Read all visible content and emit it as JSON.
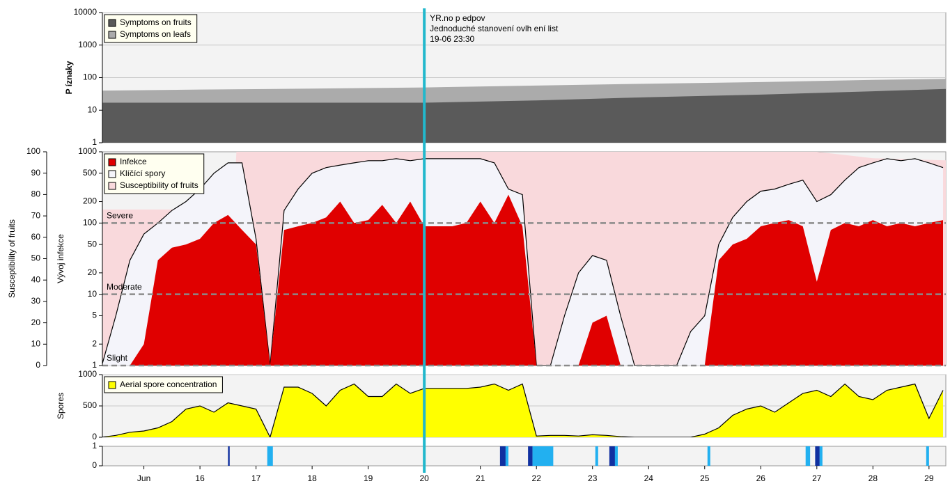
{
  "chart_data": [
    {
      "type": "area",
      "ylabel": "P íznaky",
      "log": true,
      "grid": true,
      "legend": "upper left",
      "xlim": [
        14.26,
        29.3
      ],
      "ylim": [
        1,
        10000
      ],
      "yticks": [
        1,
        10,
        100,
        1000,
        10000
      ],
      "marker_x": 20,
      "annotations": [
        "YR.no p edpov",
        "Jednoduché stanovení ovlh ení list",
        "19-06 23:30"
      ],
      "x": [
        14.26,
        16,
        18,
        20,
        22,
        24,
        26,
        28,
        29.3
      ],
      "series": [
        {
          "name": "Symptoms on fruits",
          "color": "#5a5a5a",
          "values": [
            17,
            17,
            17,
            17,
            20,
            25,
            30,
            38,
            45
          ]
        },
        {
          "name": "Symptoms on leafs",
          "color": "#ababab",
          "values": [
            40,
            43,
            46,
            50,
            57,
            65,
            73,
            85,
            92
          ]
        }
      ]
    },
    {
      "type": "area",
      "ylabel": "Vývoj infekce",
      "y2label": "Susceptibility of fruits",
      "log": true,
      "grid": false,
      "legend": "upper left",
      "xlim": [
        14.26,
        29.3
      ],
      "ylim": [
        1,
        1000
      ],
      "yticks": [
        1,
        2,
        5,
        10,
        20,
        50,
        100,
        200,
        500,
        1000
      ],
      "y2lim": [
        0,
        100
      ],
      "y2ticks": [
        0,
        10,
        20,
        30,
        40,
        50,
        60,
        70,
        80,
        90,
        100
      ],
      "thresholds": [
        {
          "label": "Severe",
          "value": 100
        },
        {
          "label": "Moderate",
          "value": 10
        },
        {
          "label": "Slight",
          "value": 1
        }
      ],
      "x": [
        14.25,
        14.5,
        14.75,
        15,
        15.25,
        15.5,
        15.75,
        16,
        16.25,
        16.5,
        16.75,
        17,
        17.25,
        17.5,
        17.75,
        18,
        18.25,
        18.5,
        18.75,
        19,
        19.25,
        19.5,
        19.75,
        20,
        20.25,
        20.5,
        20.75,
        21,
        21.25,
        21.5,
        21.75,
        22,
        22.25,
        22.5,
        22.75,
        23,
        23.25,
        23.5,
        23.75,
        24,
        24.25,
        24.5,
        24.75,
        25,
        25.25,
        25.5,
        25.75,
        26,
        26.25,
        26.5,
        26.75,
        27,
        27.25,
        27.5,
        27.75,
        28,
        28.25,
        28.5,
        28.75,
        29,
        29.25
      ],
      "series": [
        {
          "name": "Infekce",
          "color": "#e00000",
          "values": [
            1,
            1,
            1,
            2,
            30,
            45,
            50,
            60,
            100,
            130,
            80,
            50,
            1,
            80,
            90,
            100,
            120,
            200,
            100,
            110,
            180,
            100,
            200,
            90,
            90,
            90,
            100,
            200,
            100,
            250,
            90,
            1,
            1,
            1,
            1,
            4,
            5,
            1,
            1,
            1,
            1,
            1,
            1,
            1,
            30,
            50,
            60,
            90,
            100,
            110,
            90,
            15,
            80,
            100,
            90,
            110,
            90,
            100,
            90,
            100,
            110
          ]
        },
        {
          "name": "Klíčící spory",
          "color": "#f4f4fa",
          "line_color": "#000000",
          "values": [
            1,
            5,
            30,
            70,
            100,
            150,
            200,
            300,
            500,
            700,
            700,
            60,
            1,
            150,
            300,
            500,
            600,
            650,
            700,
            750,
            750,
            800,
            750,
            800,
            800,
            800,
            800,
            800,
            700,
            300,
            250,
            1,
            1,
            5,
            20,
            35,
            30,
            5,
            1,
            1,
            1,
            1,
            3,
            5,
            50,
            120,
            200,
            280,
            300,
            350,
            400,
            200,
            250,
            400,
            600,
            700,
            800,
            750,
            800,
            700,
            600
          ]
        },
        {
          "name": "Susceptibility of fruits",
          "color": "#f9d9dc",
          "axis": "y2",
          "x": [
            14.26,
            16.6,
            16.65,
            27,
            28,
            29.3
          ],
          "values": [
            73,
            73,
            100,
            100,
            97,
            96
          ]
        }
      ]
    },
    {
      "type": "area",
      "ylabel": "Spores",
      "log": false,
      "grid": true,
      "legend": "upper left",
      "xlim": [
        14.26,
        29.3
      ],
      "ylim": [
        0,
        1000
      ],
      "yticks": [
        0,
        500,
        1000
      ],
      "x": [
        14.25,
        14.5,
        14.75,
        15,
        15.25,
        15.5,
        15.75,
        16,
        16.25,
        16.5,
        16.75,
        17,
        17.25,
        17.5,
        17.75,
        18,
        18.25,
        18.5,
        18.75,
        19,
        19.25,
        19.5,
        19.75,
        20,
        20.25,
        20.5,
        20.75,
        21,
        21.25,
        21.5,
        21.75,
        22,
        22.25,
        22.5,
        22.75,
        23,
        23.25,
        23.5,
        23.75,
        24,
        24.25,
        24.5,
        24.75,
        25,
        25.25,
        25.5,
        25.75,
        26,
        26.25,
        26.5,
        26.75,
        27,
        27.25,
        27.5,
        27.75,
        28,
        28.25,
        28.5,
        28.75,
        29,
        29.25
      ],
      "series": [
        {
          "name": "Aerial spore concentration",
          "color": "#ffff00",
          "line_color": "#000000",
          "values": [
            0,
            30,
            80,
            100,
            150,
            250,
            450,
            500,
            400,
            550,
            500,
            450,
            0,
            800,
            800,
            700,
            500,
            750,
            850,
            650,
            650,
            850,
            700,
            780,
            780,
            780,
            780,
            800,
            850,
            750,
            850,
            20,
            30,
            30,
            20,
            40,
            30,
            10,
            0,
            0,
            0,
            0,
            0,
            50,
            150,
            350,
            450,
            500,
            400,
            550,
            700,
            750,
            650,
            850,
            650,
            600,
            750,
            800,
            850,
            300,
            750
          ]
        }
      ]
    },
    {
      "type": "bar",
      "log": false,
      "grid": false,
      "xlim": [
        14.26,
        29.3
      ],
      "ylim": [
        0,
        1
      ],
      "yticks": [
        0,
        1
      ],
      "xticks": [
        {
          "value": 15,
          "label": "Jun"
        },
        16,
        17,
        18,
        19,
        20,
        21,
        22,
        23,
        24,
        25,
        26,
        27,
        28,
        29
      ],
      "bars": [
        {
          "x0": 16.5,
          "x1": 16.53,
          "value": 1,
          "color": "#1030a0"
        },
        {
          "x0": 17.2,
          "x1": 17.3,
          "value": 1,
          "color": "#22b0f0"
        },
        {
          "x0": 21.35,
          "x1": 21.45,
          "value": 1,
          "color": "#1030a0"
        },
        {
          "x0": 21.45,
          "x1": 21.5,
          "value": 1,
          "color": "#22b0f0"
        },
        {
          "x0": 21.85,
          "x1": 21.93,
          "value": 1,
          "color": "#1030a0"
        },
        {
          "x0": 21.93,
          "x1": 22.3,
          "value": 1,
          "color": "#22b0f0"
        },
        {
          "x0": 23.05,
          "x1": 23.1,
          "value": 1,
          "color": "#22b0f0"
        },
        {
          "x0": 23.3,
          "x1": 23.4,
          "value": 1,
          "color": "#1030a0"
        },
        {
          "x0": 23.4,
          "x1": 23.45,
          "value": 1,
          "color": "#22b0f0"
        },
        {
          "x0": 25.05,
          "x1": 25.1,
          "value": 1,
          "color": "#22b0f0"
        },
        {
          "x0": 26.8,
          "x1": 26.88,
          "value": 1,
          "color": "#22b0f0"
        },
        {
          "x0": 26.97,
          "x1": 27.05,
          "value": 1,
          "color": "#1030a0"
        },
        {
          "x0": 27.05,
          "x1": 27.1,
          "value": 1,
          "color": "#22b0f0"
        },
        {
          "x0": 28.95,
          "x1": 29.0,
          "value": 1,
          "color": "#22b0f0"
        }
      ]
    }
  ]
}
